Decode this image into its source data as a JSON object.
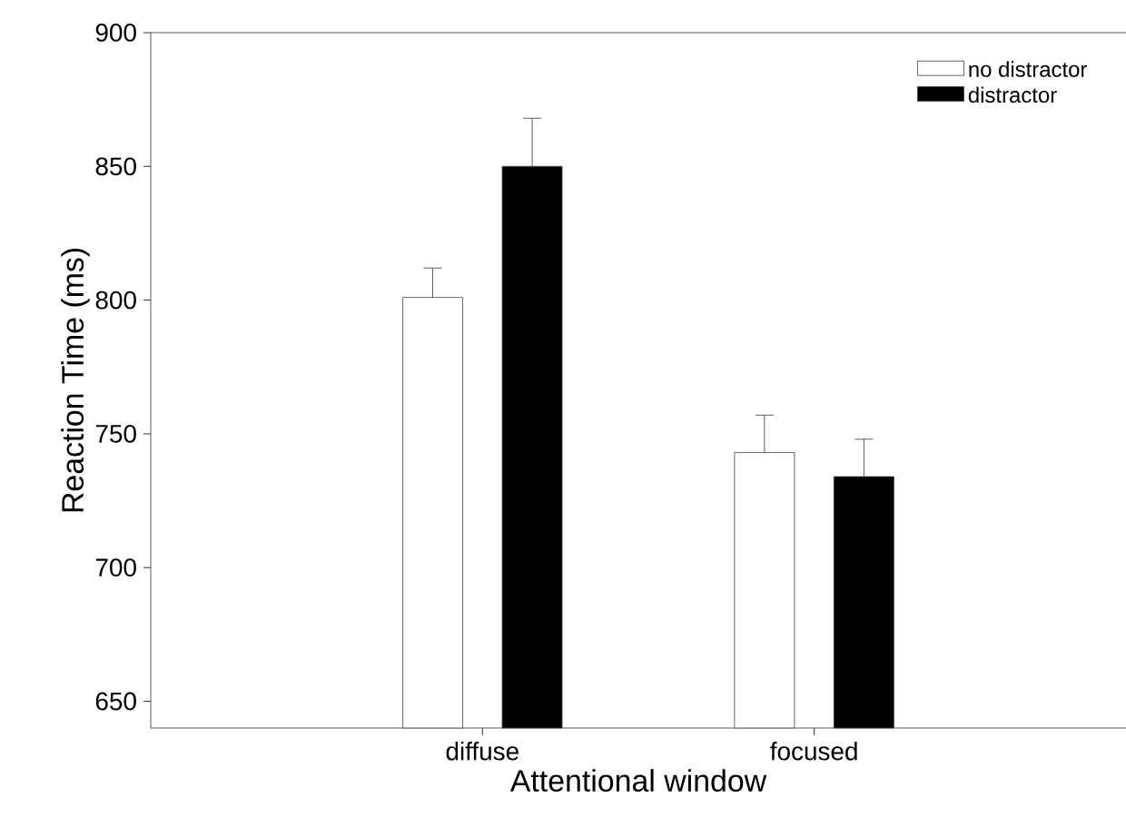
{
  "chart_data": {
    "type": "bar",
    "xlabel": "Attentional window",
    "ylabel": "Reaction Time (ms)",
    "categories": [
      "diffuse",
      "focused"
    ],
    "series": [
      {
        "name": "no distractor",
        "color": "#ffffff",
        "values": [
          801,
          743
        ],
        "errors": [
          [
            801,
            812
          ],
          [
            743,
            757
          ]
        ]
      },
      {
        "name": "distractor",
        "color": "#000000",
        "values": [
          850,
          734
        ],
        "errors": [
          [
            850,
            868
          ],
          [
            734,
            748
          ]
        ]
      }
    ],
    "ylim": [
      640,
      900
    ],
    "yticks": [
      650,
      700,
      750,
      800,
      850,
      900
    ],
    "grid": false,
    "legend": "top right"
  }
}
